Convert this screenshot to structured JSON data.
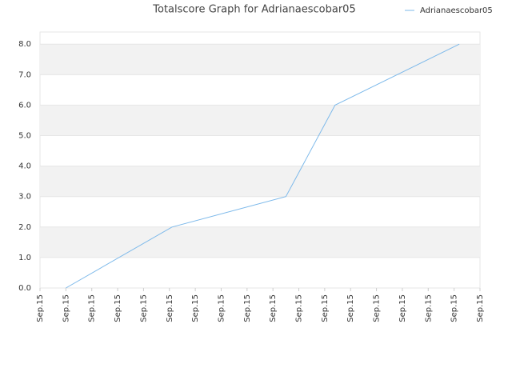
{
  "chart_data": {
    "type": "line",
    "title": "Totalscore Graph for Adrianaescobar05",
    "x": [
      1,
      5.1,
      9.5,
      11.4,
      16.2
    ],
    "series": [
      {
        "name": "Adrianaescobar05",
        "color": "#7db9ea",
        "values": [
          0,
          2,
          3,
          6,
          8
        ]
      }
    ],
    "xlim": [
      0,
      17
    ],
    "xticks": [
      {
        "value": 0,
        "label": "Sep.15"
      },
      {
        "value": 1,
        "label": "Sep.15"
      },
      {
        "value": 2,
        "label": "Sep.15"
      },
      {
        "value": 3,
        "label": "Sep.15"
      },
      {
        "value": 4,
        "label": "Sep.15"
      },
      {
        "value": 5,
        "label": "Sep.15"
      },
      {
        "value": 6,
        "label": "Sep.15"
      },
      {
        "value": 7,
        "label": "Sep.15"
      },
      {
        "value": 8,
        "label": "Sep.15"
      },
      {
        "value": 9,
        "label": "Sep.15"
      },
      {
        "value": 10,
        "label": "Sep.15"
      },
      {
        "value": 11,
        "label": "Sep.15"
      },
      {
        "value": 12,
        "label": "Sep.15"
      },
      {
        "value": 13,
        "label": "Sep.15"
      },
      {
        "value": 14,
        "label": "Sep.15"
      },
      {
        "value": 15,
        "label": "Sep.15"
      },
      {
        "value": 16,
        "label": "Sep.15"
      },
      {
        "value": 17,
        "label": "Sep.15"
      }
    ],
    "ylim": [
      0,
      8.4
    ],
    "yticks": [
      {
        "value": 0,
        "label": "0.0"
      },
      {
        "value": 1,
        "label": "1.0"
      },
      {
        "value": 2,
        "label": "2.0"
      },
      {
        "value": 3,
        "label": "3.0"
      },
      {
        "value": 4,
        "label": "4.0"
      },
      {
        "value": 5,
        "label": "5.0"
      },
      {
        "value": 6,
        "label": "6.0"
      },
      {
        "value": 7,
        "label": "7.0"
      },
      {
        "value": 8,
        "label": "8.0"
      }
    ],
    "grid": true,
    "legend": "top-right"
  }
}
